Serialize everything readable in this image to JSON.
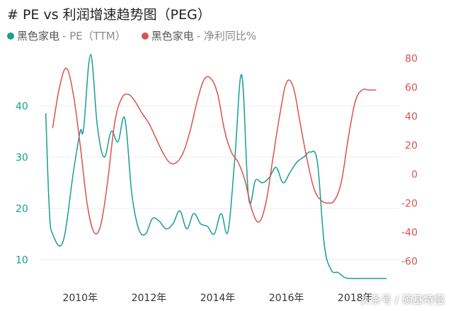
{
  "title": "# PE vs 利润增速趋势图（PEG）",
  "legend": [
    {
      "name": "黑色家电",
      "metric": "- PE（TTM）",
      "color": "#1a9e8f"
    },
    {
      "name": "黑色家电",
      "metric": "- 净利同比%",
      "color": "#d9534f"
    }
  ],
  "watermark": "头条号 / 硕基特慢",
  "chart_data": {
    "type": "line",
    "x_ticks": [
      "2010年",
      "2012年",
      "2014年",
      "2016年",
      "2018年"
    ],
    "x_tick_years": [
      2010,
      2012,
      2014,
      2016,
      2018
    ],
    "x_range": [
      2008.8,
      2019.3
    ],
    "left_axis": {
      "ticks": [
        10,
        20,
        30,
        40
      ],
      "range": [
        5.5,
        51
      ]
    },
    "right_axis": {
      "ticks": [
        -60,
        -40,
        -20,
        0,
        20,
        40,
        60,
        80
      ],
      "range": [
        -75,
        86
      ]
    },
    "grid": true,
    "series": [
      {
        "name": "黑色家电 - PE（TTM）",
        "axis": "left",
        "color": "#1a9e8f",
        "x": [
          2009.0,
          2009.1,
          2009.2,
          2009.5,
          2009.8,
          2010.0,
          2010.1,
          2010.3,
          2010.5,
          2010.7,
          2010.9,
          2011.1,
          2011.3,
          2011.5,
          2011.7,
          2011.9,
          2012.1,
          2012.3,
          2012.5,
          2012.7,
          2012.9,
          2013.1,
          2013.3,
          2013.5,
          2013.7,
          2013.9,
          2014.1,
          2014.3,
          2014.5,
          2014.7,
          2014.9,
          2015.1,
          2015.3,
          2015.5,
          2015.7,
          2015.9,
          2016.1,
          2016.3,
          2016.5,
          2016.7,
          2016.9,
          2017.1,
          2017.3,
          2017.5,
          2017.7,
          2017.9,
          2018.0,
          2018.1,
          2018.2,
          2018.3,
          2018.5,
          2018.7,
          2018.9
        ],
        "values": [
          38.5,
          20,
          15,
          13.5,
          27,
          35,
          35.5,
          50,
          36,
          30,
          35,
          33,
          37.5,
          23,
          16,
          15,
          18,
          17.5,
          16,
          17,
          19.5,
          16,
          19,
          17,
          16.5,
          15,
          19,
          15.5,
          30,
          46,
          22,
          25.5,
          25,
          26,
          28,
          25,
          27,
          29,
          30,
          31,
          29,
          13,
          8,
          7.5,
          6.5,
          5.8,
          5.3,
          5.0,
          5.0,
          5.0,
          5.0,
          5.0,
          5.0
        ]
      },
      {
        "name": "黑色家电 - 净利同比%",
        "axis": "right",
        "color": "#d9534f",
        "x": [
          2009.2,
          2009.4,
          2009.6,
          2009.8,
          2010.0,
          2010.2,
          2010.4,
          2010.6,
          2010.8,
          2011.0,
          2011.2,
          2011.4,
          2011.6,
          2011.8,
          2012.0,
          2012.2,
          2012.4,
          2012.6,
          2012.8,
          2013.0,
          2013.2,
          2013.4,
          2013.6,
          2013.8,
          2014.0,
          2014.2,
          2014.4,
          2014.6,
          2014.8,
          2015.0,
          2015.2,
          2015.4,
          2015.6,
          2015.8,
          2016.0,
          2016.2,
          2016.4,
          2016.6,
          2016.8,
          2017.0,
          2017.2,
          2017.4,
          2017.6,
          2017.8,
          2018.0,
          2018.2,
          2018.4,
          2018.6
        ],
        "values": [
          32,
          60,
          73,
          55,
          20,
          -20,
          -40,
          -35,
          -5,
          35,
          52,
          55,
          50,
          42,
          35,
          25,
          15,
          8,
          8,
          15,
          30,
          50,
          65,
          66,
          55,
          30,
          15,
          8,
          -5,
          -25,
          -33,
          -20,
          10,
          40,
          63,
          60,
          35,
          10,
          -10,
          -18,
          -20,
          -18,
          -5,
          25,
          50,
          58,
          58,
          58
        ]
      }
    ]
  }
}
